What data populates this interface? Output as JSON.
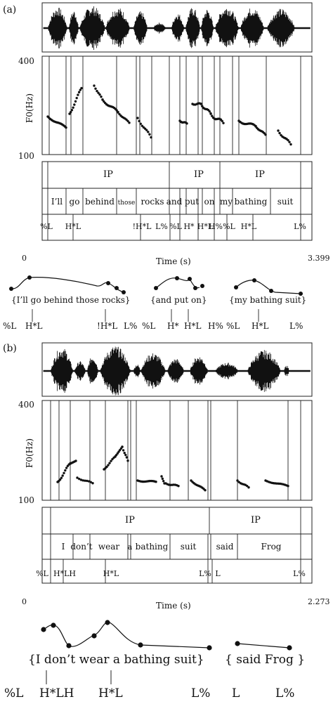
{
  "panel_a": {
    "label": "(a)",
    "f0_axis": {
      "label": "F0(Hz)",
      "top": "400",
      "bottom": "100"
    },
    "time_axis": {
      "label": "Time (s)",
      "start": "0",
      "end": "3.399"
    },
    "ip_labels": [
      "IP",
      "IP",
      "IP"
    ],
    "words": [
      "I’ll",
      "go",
      "behind",
      "those",
      "rocks",
      "and",
      "put",
      "on",
      "my",
      "bathing",
      "suit"
    ],
    "tones": [
      "%L",
      "H*L",
      "!H*L",
      "L%",
      "%L",
      "H*",
      "H*L",
      "H%",
      "%L",
      "H*L",
      "L%"
    ],
    "phrases": [
      {
        "text": "{I’ll go behind those rocks}",
        "tones": [
          "%L",
          "H*L",
          "!H*L",
          "L%"
        ]
      },
      {
        "text": "{and put on}",
        "tones": [
          "%L",
          "H*",
          "H*L",
          "H%"
        ]
      },
      {
        "text": "{my bathing suit}",
        "tones": [
          "%L",
          "H*L",
          "L%"
        ]
      }
    ]
  },
  "panel_b": {
    "label": "(b)",
    "f0_axis": {
      "label": "F0(Hz)",
      "top": "400",
      "bottom": "100"
    },
    "time_axis": {
      "label": "Time (s)",
      "start": "0",
      "end": "2.273"
    },
    "ip_labels": [
      "IP",
      "IP"
    ],
    "words": [
      "I",
      "don’t",
      "wear",
      "a",
      "bathing",
      "suit",
      "said",
      "Frog"
    ],
    "tones": [
      "%L",
      "H*LH",
      "H*L",
      "L%",
      "L",
      "L%"
    ],
    "phrases": [
      {
        "text": "{I don’t wear a bathing suit}",
        "tones": [
          "%L",
          "H*LH",
          "H*L",
          "L%"
        ]
      },
      {
        "text": "{ said Frog }",
        "tones": [
          "L",
          "L%"
        ]
      }
    ]
  }
}
